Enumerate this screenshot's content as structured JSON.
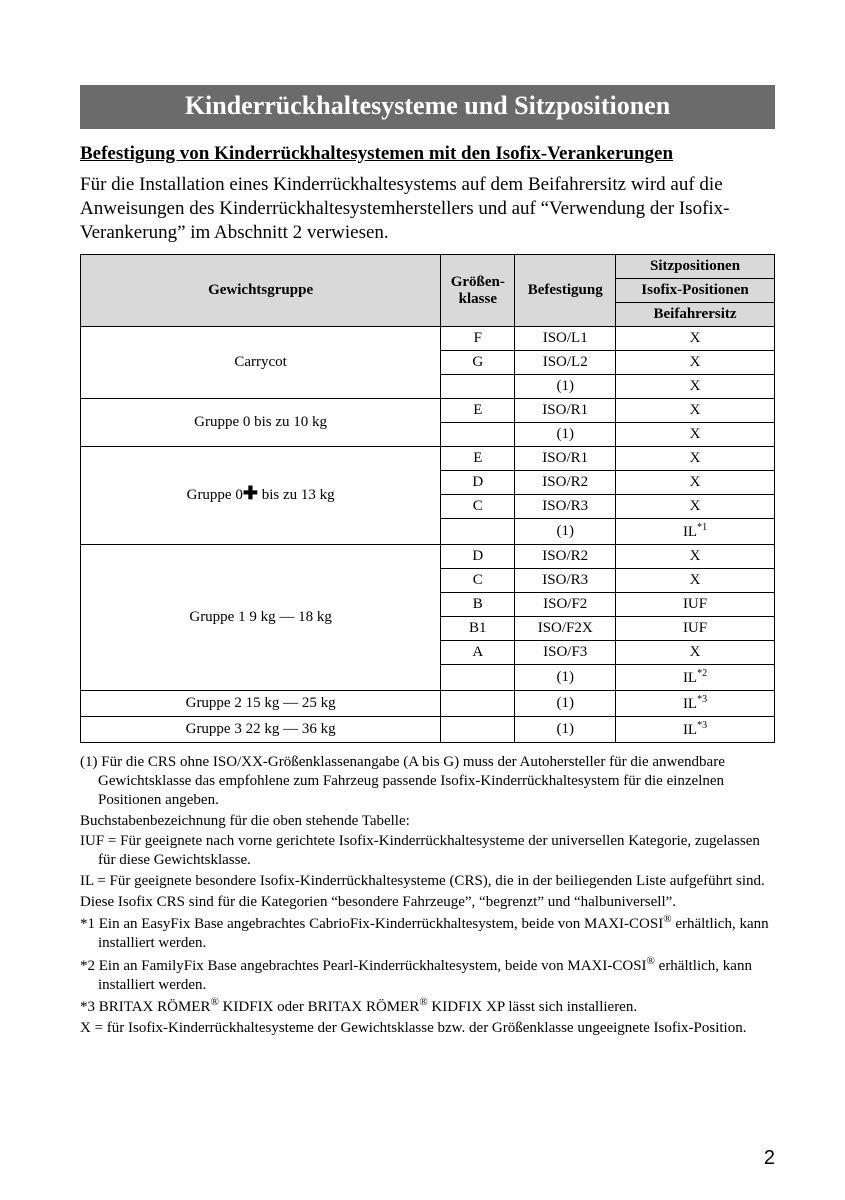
{
  "title": "Kinderrückhaltesysteme und Sitzpositionen",
  "subheading": "Befestigung von Kinderrückhaltesystemen mit den Isofix-Verankerungen",
  "intro": "Für die Installation eines Kinderrückhaltesystems auf dem Beifahrersitz wird auf die Anweisungen des Kinderrückhaltesystemherstellers und auf “Verwendung der Isofix-Verankerung” im Abschnitt 2 verwiesen.",
  "table": {
    "headers": {
      "weight": "Gewichtsgruppe",
      "size": "Größen-klasse",
      "fix": "Befestigung",
      "pos_top": "Sitzpositionen",
      "pos_mid": "Isofix-Positionen",
      "pos_bot": "Beifahrersitz"
    },
    "groups": [
      {
        "label": "Carrycot",
        "plus": false,
        "rows": [
          {
            "size": "F",
            "fix": "ISO/L1",
            "pos": "X",
            "sup": ""
          },
          {
            "size": "G",
            "fix": "ISO/L2",
            "pos": "X",
            "sup": ""
          },
          {
            "size": "",
            "fix": "(1)",
            "pos": "X",
            "sup": ""
          }
        ]
      },
      {
        "label": "Gruppe 0 bis zu 10 kg",
        "plus": false,
        "rows": [
          {
            "size": "E",
            "fix": "ISO/R1",
            "pos": "X",
            "sup": ""
          },
          {
            "size": "",
            "fix": "(1)",
            "pos": "X",
            "sup": ""
          }
        ]
      },
      {
        "label_pre": "Gruppe 0",
        "label_post": " bis zu 13 kg",
        "plus": true,
        "rows": [
          {
            "size": "E",
            "fix": "ISO/R1",
            "pos": "X",
            "sup": ""
          },
          {
            "size": "D",
            "fix": "ISO/R2",
            "pos": "X",
            "sup": ""
          },
          {
            "size": "C",
            "fix": "ISO/R3",
            "pos": "X",
            "sup": ""
          },
          {
            "size": "",
            "fix": "(1)",
            "pos": "IL",
            "sup": "*1"
          }
        ]
      },
      {
        "label": "Gruppe 1 9 kg — 18 kg",
        "plus": false,
        "rows": [
          {
            "size": "D",
            "fix": "ISO/R2",
            "pos": "X",
            "sup": ""
          },
          {
            "size": "C",
            "fix": "ISO/R3",
            "pos": "X",
            "sup": ""
          },
          {
            "size": "B",
            "fix": "ISO/F2",
            "pos": "IUF",
            "sup": ""
          },
          {
            "size": "B1",
            "fix": "ISO/F2X",
            "pos": "IUF",
            "sup": ""
          },
          {
            "size": "A",
            "fix": "ISO/F3",
            "pos": "X",
            "sup": ""
          },
          {
            "size": "",
            "fix": "(1)",
            "pos": "IL",
            "sup": "*2"
          }
        ]
      },
      {
        "label": "Gruppe 2 15 kg — 25 kg",
        "plus": false,
        "rows": [
          {
            "size": "",
            "fix": "(1)",
            "pos": "IL",
            "sup": "*3"
          }
        ]
      },
      {
        "label": "Gruppe 3 22 kg — 36 kg",
        "plus": false,
        "rows": [
          {
            "size": "",
            "fix": "(1)",
            "pos": "IL",
            "sup": "*3"
          }
        ]
      }
    ]
  },
  "notes": {
    "n1": "(1) Für die CRS ohne ISO/XX-Größenklassenangabe (A bis G) muss der Autohersteller für die anwendbare Gewichtsklasse das empfohlene zum Fahrzeug passende Isofix-Kinderrückhaltesystem für die einzelnen Positionen angeben.",
    "n2": "Buchstabenbezeichnung für die oben stehende Tabelle:",
    "n3": "IUF = Für geeignete nach vorne gerichtete Isofix-Kinderrückhaltesysteme der universellen Kategorie, zugelassen für diese Gewichtsklasse.",
    "n4": "IL = Für geeignete besondere Isofix-Kinderrückhaltesysteme (CRS), die in der beiliegenden Liste aufgeführt sind.",
    "n5": "Diese Isofix CRS sind für die Kategorien “besondere Fahrzeuge”, “begrenzt” und “halbuniversell”.",
    "n6a": "*1 Ein an EasyFix Base angebrachtes CabrioFix-Kinderrückhaltesystem, beide von MAXI-COSI",
    "n6b": " erhältlich, kann installiert werden.",
    "n7a": "*2 Ein an FamilyFix Base angebrachtes Pearl-Kinderrückhaltesystem, beide von MAXI-COSI",
    "n7b": " erhältlich, kann installiert werden.",
    "n8a": "*3 BRITAX RÖMER",
    "n8b": " KIDFIX oder BRITAX RÖMER",
    "n8c": " KIDFIX XP lässt sich installieren.",
    "n9": "X = für Isofix-Kinderrückhaltesysteme der Gewichtsklasse bzw. der Größenklasse ungeeignete Isofix-Position."
  },
  "page_number": "2",
  "colors": {
    "title_bg": "#6b6b6b",
    "title_fg": "#ffffff",
    "header_bg": "#d9d9d9",
    "border": "#000000",
    "text": "#000000",
    "page_bg": "#ffffff"
  }
}
